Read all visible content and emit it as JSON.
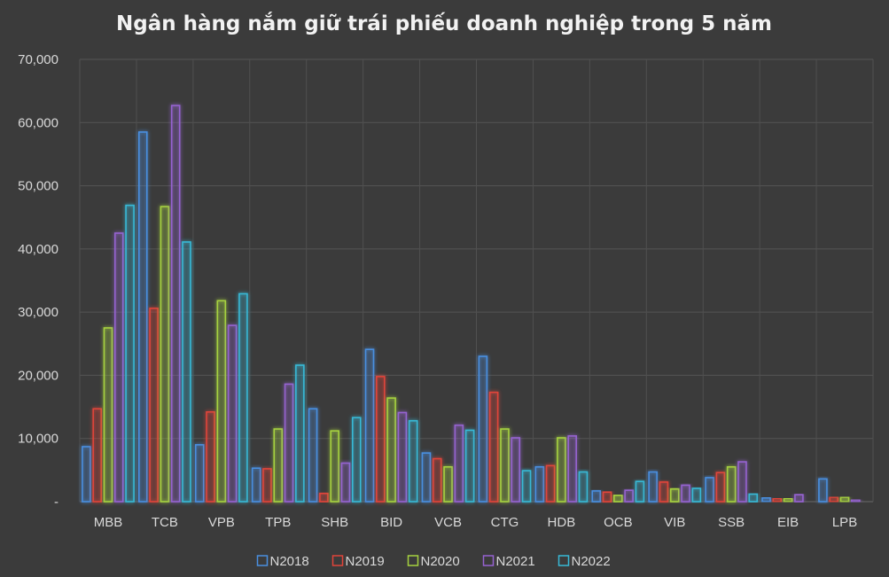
{
  "chart_data": {
    "type": "bar",
    "title": "Ngân hàng nắm giữ trái phiếu doanh nghiệp trong 5 năm",
    "xlabel": "",
    "ylabel": "",
    "ylim": [
      0,
      70000
    ],
    "yticks": [
      {
        "value": 0,
        "label": "-"
      },
      {
        "value": 10000,
        "label": "10,000"
      },
      {
        "value": 20000,
        "label": "20,000"
      },
      {
        "value": 30000,
        "label": "30,000"
      },
      {
        "value": 40000,
        "label": "40,000"
      },
      {
        "value": 50000,
        "label": "50,000"
      },
      {
        "value": 60000,
        "label": "60,000"
      },
      {
        "value": 70000,
        "label": "70,000"
      }
    ],
    "grid": true,
    "legend_position": "bottom",
    "categories": [
      "MBB",
      "TCB",
      "VPB",
      "TPB",
      "SHB",
      "BID",
      "VCB",
      "CTG",
      "HDB",
      "OCB",
      "VIB",
      "SSB",
      "EIB",
      "LPB"
    ],
    "series": [
      {
        "name": "N2018",
        "color": "#4a8fe0",
        "values": [
          8700,
          58500,
          9000,
          5300,
          14700,
          24100,
          7700,
          23000,
          5500,
          1700,
          4700,
          3800,
          600,
          3600
        ]
      },
      {
        "name": "N2019",
        "color": "#e0443a",
        "values": [
          14700,
          30600,
          14200,
          5200,
          1300,
          19800,
          6800,
          17300,
          5700,
          1500,
          3100,
          4600,
          500,
          700
        ]
      },
      {
        "name": "N2020",
        "color": "#a6d23f",
        "values": [
          27500,
          46700,
          31800,
          11500,
          11200,
          16400,
          5500,
          11500,
          10100,
          1000,
          2000,
          5500,
          500,
          700
        ]
      },
      {
        "name": "N2021",
        "color": "#9663d1",
        "values": [
          42500,
          62700,
          27900,
          18600,
          6100,
          14100,
          12100,
          10100,
          10400,
          1800,
          2600,
          6300,
          1100,
          300
        ]
      },
      {
        "name": "N2022",
        "color": "#38b9d6",
        "values": [
          46900,
          41100,
          32900,
          21600,
          13300,
          12800,
          11300,
          4900,
          4700,
          3200,
          2100,
          1200,
          0,
          0
        ]
      }
    ]
  }
}
